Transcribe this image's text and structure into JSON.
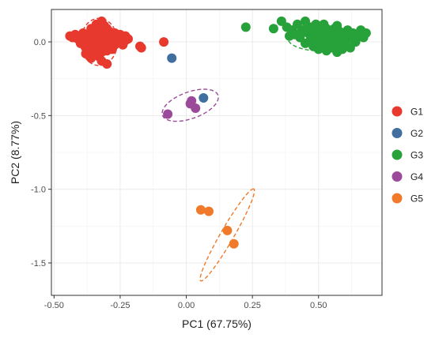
{
  "chart_data": {
    "type": "scatter",
    "xlabel": "PC1 (67.75%)",
    "ylabel": "PC2 (8.77%)",
    "xlim": [
      -0.51,
      0.74
    ],
    "ylim": [
      -1.72,
      0.22
    ],
    "xticks": [
      -0.5,
      -0.25,
      0.0,
      0.25,
      0.5
    ],
    "xtick_labels": [
      "-0.50",
      "-0.25",
      "0.00",
      "0.25",
      "0.50"
    ],
    "yticks": [
      0.0,
      -0.5,
      -1.0,
      -1.5
    ],
    "ytick_labels": [
      "0.0",
      "-0.5",
      "-1.0",
      "-1.5"
    ],
    "grid": true,
    "legend_position": "right",
    "series": [
      {
        "name": "G1",
        "color": "#e8392e",
        "points": [
          [
            -0.44,
            0.04
          ],
          [
            -0.43,
            0.03
          ],
          [
            -0.42,
            0.05
          ],
          [
            -0.41,
            0.02
          ],
          [
            -0.4,
            0.04
          ],
          [
            -0.4,
            -0.01
          ],
          [
            -0.39,
            0.03
          ],
          [
            -0.39,
            0.06
          ],
          [
            -0.38,
            0.01
          ],
          [
            -0.38,
            -0.04
          ],
          [
            -0.37,
            0.05
          ],
          [
            -0.37,
            0.02
          ],
          [
            -0.37,
            -0.06
          ],
          [
            -0.36,
            0.09
          ],
          [
            -0.36,
            0.0
          ],
          [
            -0.36,
            -0.02
          ],
          [
            -0.35,
            0.07
          ],
          [
            -0.35,
            0.03
          ],
          [
            -0.35,
            -0.08
          ],
          [
            -0.34,
            0.12
          ],
          [
            -0.34,
            0.05
          ],
          [
            -0.34,
            -0.01
          ],
          [
            -0.34,
            -0.05
          ],
          [
            -0.33,
            0.1
          ],
          [
            -0.33,
            0.06
          ],
          [
            -0.33,
            0.02
          ],
          [
            -0.33,
            -0.03
          ],
          [
            -0.33,
            -0.1
          ],
          [
            -0.32,
            0.14
          ],
          [
            -0.32,
            0.08
          ],
          [
            -0.32,
            0.04
          ],
          [
            -0.32,
            -0.02
          ],
          [
            -0.32,
            -0.07
          ],
          [
            -0.31,
            0.11
          ],
          [
            -0.31,
            0.06
          ],
          [
            -0.31,
            0.01
          ],
          [
            -0.31,
            -0.04
          ],
          [
            -0.3,
            0.09
          ],
          [
            -0.3,
            0.04
          ],
          [
            -0.3,
            -0.01
          ],
          [
            -0.3,
            -0.06
          ],
          [
            -0.29,
            0.07
          ],
          [
            -0.29,
            0.02
          ],
          [
            -0.29,
            -0.03
          ],
          [
            -0.28,
            0.05
          ],
          [
            -0.28,
            0.0
          ],
          [
            -0.28,
            -0.05
          ],
          [
            -0.27,
            0.06
          ],
          [
            -0.27,
            0.02
          ],
          [
            -0.27,
            -0.02
          ],
          [
            -0.26,
            0.04
          ],
          [
            -0.26,
            0.0
          ],
          [
            -0.25,
            0.05
          ],
          [
            -0.25,
            0.02
          ],
          [
            -0.24,
            0.03
          ],
          [
            -0.24,
            -0.02
          ],
          [
            -0.23,
            0.04
          ],
          [
            -0.23,
            0.01
          ],
          [
            -0.22,
            0.02
          ],
          [
            -0.36,
            -0.11
          ],
          [
            -0.32,
            -0.13
          ],
          [
            -0.3,
            -0.15
          ],
          [
            -0.38,
            -0.08
          ],
          [
            -0.34,
            0.02
          ],
          [
            -0.31,
            0.03
          ],
          [
            -0.29,
            0.05
          ],
          [
            -0.35,
            0.04
          ],
          [
            -0.33,
            0.0
          ],
          [
            -0.3,
            0.02
          ],
          [
            -0.28,
            0.03
          ],
          [
            -0.175,
            -0.03
          ],
          [
            -0.17,
            -0.04
          ],
          [
            -0.085,
            0.0
          ]
        ]
      },
      {
        "name": "G2",
        "color": "#3f6e9f",
        "points": [
          [
            -0.055,
            -0.11
          ],
          [
            0.065,
            -0.38
          ]
        ]
      },
      {
        "name": "G3",
        "color": "#27a13a",
        "points": [
          [
            0.225,
            0.1
          ],
          [
            0.33,
            0.09
          ],
          [
            0.36,
            0.14
          ],
          [
            0.38,
            0.1
          ],
          [
            0.4,
            0.08
          ],
          [
            0.41,
            0.05
          ],
          [
            0.42,
            0.12
          ],
          [
            0.43,
            0.03
          ],
          [
            0.44,
            0.08
          ],
          [
            0.45,
            0.14
          ],
          [
            0.45,
            -0.01
          ],
          [
            0.46,
            0.06
          ],
          [
            0.47,
            0.02
          ],
          [
            0.47,
            0.1
          ],
          [
            0.48,
            -0.03
          ],
          [
            0.48,
            0.05
          ],
          [
            0.49,
            0.12
          ],
          [
            0.49,
            0.0
          ],
          [
            0.5,
            0.07
          ],
          [
            0.5,
            -0.05
          ],
          [
            0.51,
            0.03
          ],
          [
            0.51,
            0.1
          ],
          [
            0.52,
            -0.02
          ],
          [
            0.52,
            0.06
          ],
          [
            0.53,
            0.01
          ],
          [
            0.53,
            -0.06
          ],
          [
            0.54,
            0.08
          ],
          [
            0.54,
            0.03
          ],
          [
            0.55,
            -0.04
          ],
          [
            0.55,
            0.05
          ],
          [
            0.56,
            0.0
          ],
          [
            0.56,
            0.09
          ],
          [
            0.57,
            -0.07
          ],
          [
            0.57,
            0.04
          ],
          [
            0.58,
            -0.02
          ],
          [
            0.58,
            0.07
          ],
          [
            0.59,
            0.02
          ],
          [
            0.59,
            -0.05
          ],
          [
            0.6,
            0.05
          ],
          [
            0.6,
            -0.01
          ],
          [
            0.61,
            0.08
          ],
          [
            0.61,
            0.02
          ],
          [
            0.62,
            -0.04
          ],
          [
            0.62,
            0.04
          ],
          [
            0.63,
            0.06
          ],
          [
            0.64,
            0.0
          ],
          [
            0.65,
            0.04
          ],
          [
            0.66,
            0.08
          ],
          [
            0.67,
            0.03
          ],
          [
            0.68,
            0.06
          ],
          [
            0.39,
            0.04
          ],
          [
            0.43,
            0.06
          ],
          [
            0.46,
            0.09
          ],
          [
            0.5,
            0.02
          ],
          [
            0.53,
            0.05
          ],
          [
            0.56,
            0.03
          ],
          [
            0.59,
            0.06
          ],
          [
            0.63,
            0.02
          ],
          [
            0.57,
            0.11
          ],
          [
            0.52,
            0.12
          ]
        ]
      },
      {
        "name": "G4",
        "color": "#9b4a9a",
        "points": [
          [
            -0.07,
            -0.49
          ],
          [
            0.015,
            -0.42
          ],
          [
            0.035,
            -0.45
          ],
          [
            0.02,
            -0.4
          ]
        ]
      },
      {
        "name": "G5",
        "color": "#f07a2a",
        "points": [
          [
            0.055,
            -1.14
          ],
          [
            0.085,
            -1.15
          ],
          [
            0.155,
            -1.28
          ],
          [
            0.18,
            -1.37
          ]
        ]
      }
    ],
    "ellipses": [
      {
        "series": "G1",
        "cx": -0.33,
        "cy": 0.0,
        "rx": 0.125,
        "ry": 0.16,
        "angle": 0
      },
      {
        "series": "G3",
        "cx": 0.5,
        "cy": 0.03,
        "rx": 0.21,
        "ry": 0.09,
        "angle": 0
      },
      {
        "series": "G4",
        "cx": 0.015,
        "cy": -0.43,
        "rx": 0.2,
        "ry": 0.09,
        "angle": 20
      },
      {
        "series": "G5",
        "cx": 0.155,
        "cy": -1.31,
        "rx": 0.36,
        "ry": 0.045,
        "angle": 60
      }
    ]
  }
}
